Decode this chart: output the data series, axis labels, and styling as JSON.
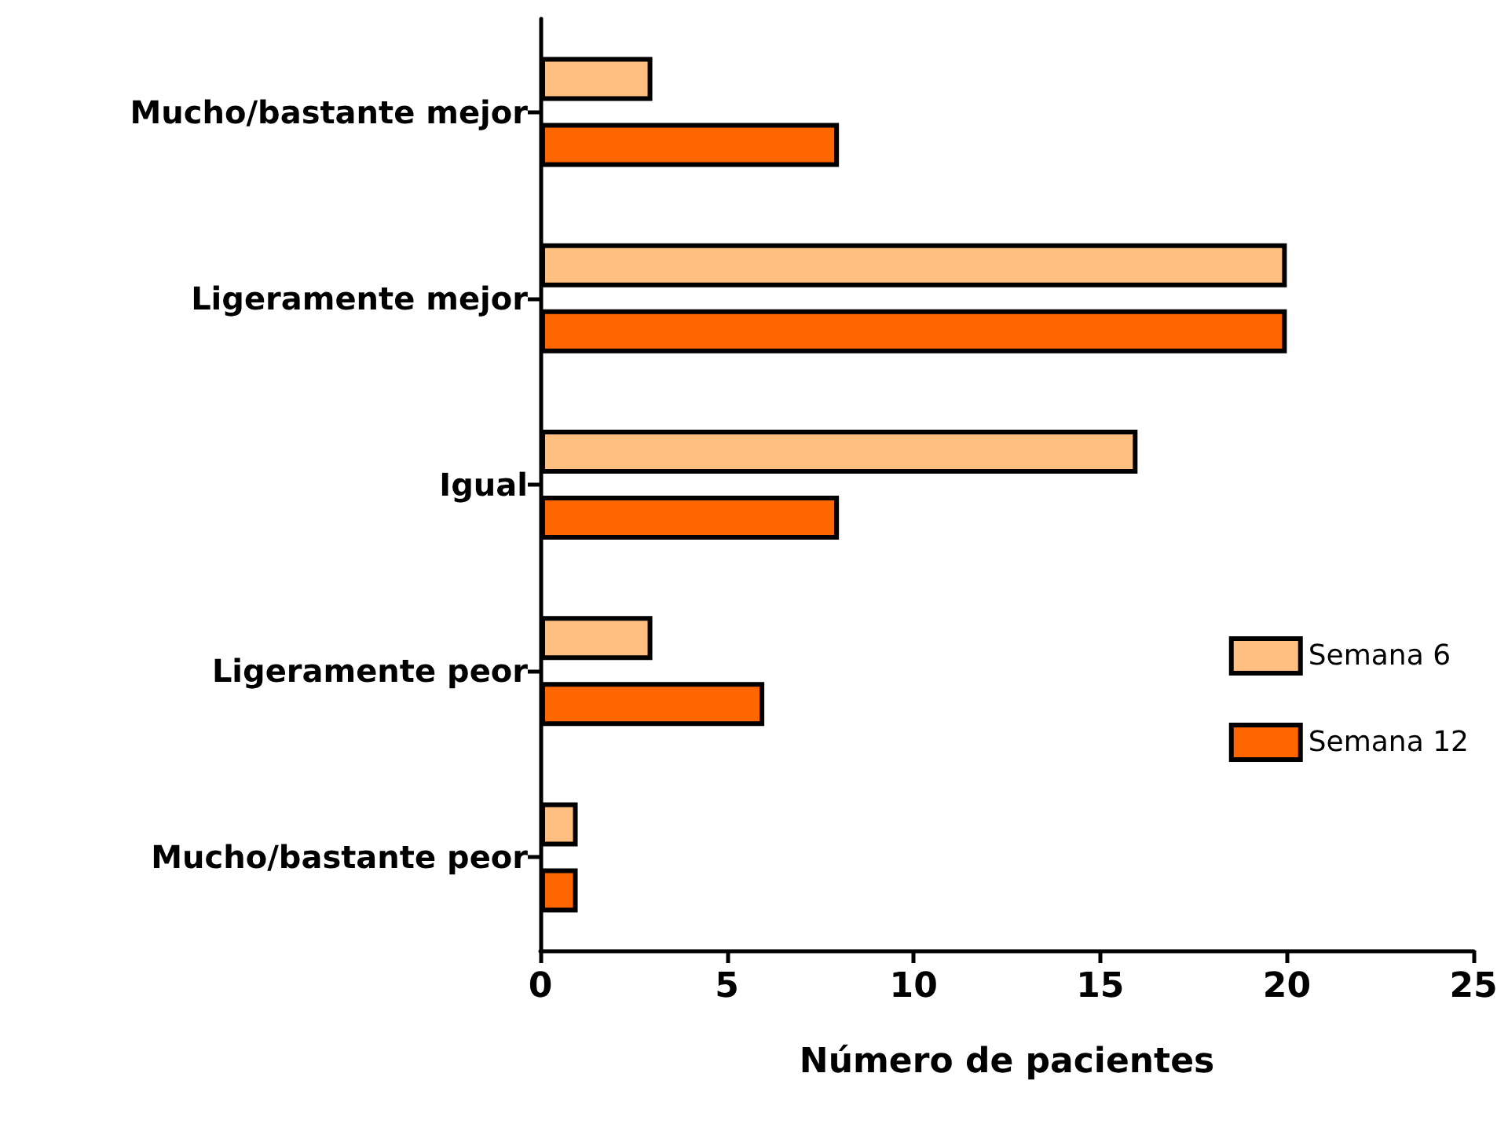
{
  "chart_data": {
    "type": "bar",
    "orientation": "horizontal",
    "xlabel": "Número de pacientes",
    "categories": [
      "Mucho/bastante mejor",
      "Ligeramente mejor",
      "Igual",
      "Ligeramente peor",
      "Mucho/bastante peor"
    ],
    "series": [
      {
        "name": "Semana 6",
        "color": "#ffbf80",
        "values": [
          3,
          20,
          16,
          3,
          1
        ]
      },
      {
        "name": "Semana 12",
        "color": "#ff6600",
        "values": [
          8,
          20,
          8,
          6,
          1
        ]
      }
    ],
    "xlim": [
      0,
      25
    ],
    "xticks": [
      0,
      5,
      10,
      15,
      20,
      25
    ],
    "grid": false,
    "legend": "right"
  }
}
